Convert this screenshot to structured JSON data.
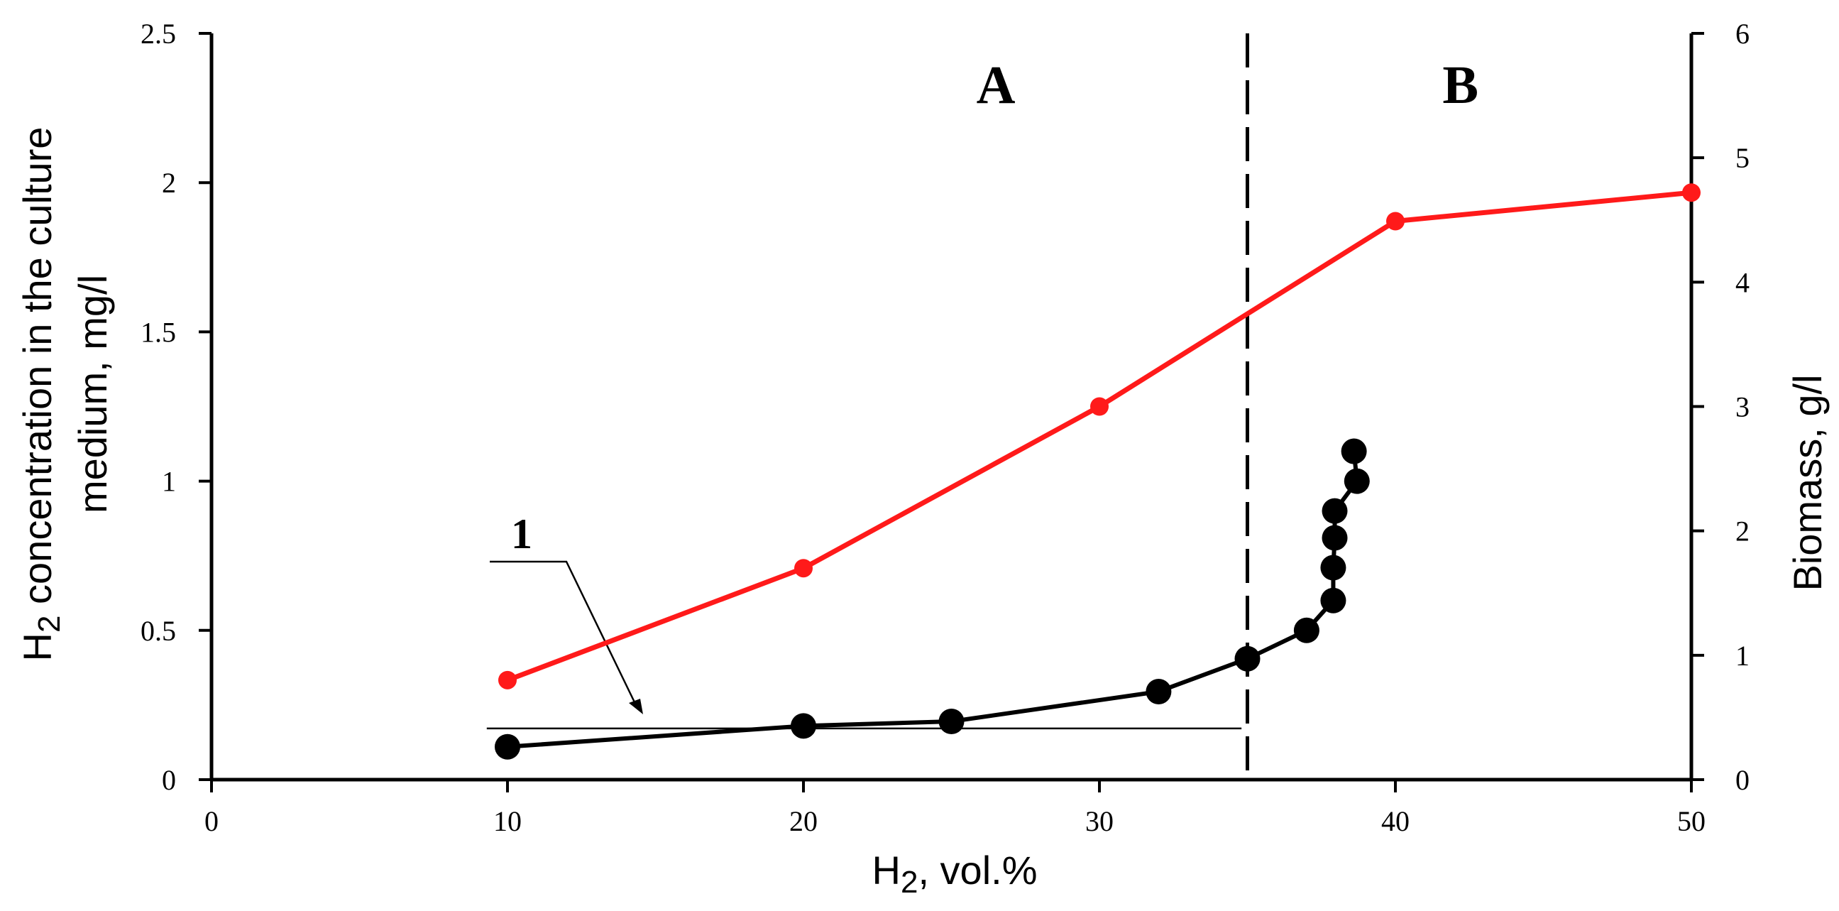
{
  "chart_data": {
    "type": "line",
    "x_label": {
      "base": "H",
      "sub": "2",
      "rest": ", vol.%"
    },
    "y_label_left": {
      "line1_base": "H",
      "line1_sub": "2",
      "line1_rest": " concentration in the culture",
      "line2": "medium, mg/l"
    },
    "y_label_right": "Biomass, g/l",
    "x_range": [
      0,
      50
    ],
    "x_ticks": [
      "0",
      "10",
      "20",
      "30",
      "40",
      "50"
    ],
    "y_left_range": [
      0,
      2.5
    ],
    "y_left_ticks": [
      "0",
      "0.5",
      "1",
      "1.5",
      "2",
      "2.5"
    ],
    "y_right_range": [
      0,
      6
    ],
    "y_right_ticks": [
      "0",
      "1",
      "2",
      "3",
      "4",
      "5",
      "6"
    ],
    "regions": [
      {
        "label": "A",
        "x_center": 26.5
      },
      {
        "label": "B",
        "x_center": 42.2
      }
    ],
    "divider_x": 35,
    "callout": {
      "label": "1",
      "line_from_x": 9.3,
      "line_to_x": 34.8,
      "line_y": 0.2
    },
    "series": [
      {
        "axis": "right",
        "color": "#ff1a1a",
        "points": [
          {
            "x": 10,
            "y": 0.8
          },
          {
            "x": 20,
            "y": 1.7
          },
          {
            "x": 30,
            "y": 3.0
          },
          {
            "x": 40,
            "y": 4.49
          },
          {
            "x": 50,
            "y": 4.72
          }
        ]
      },
      {
        "axis": "left",
        "color": "#000000",
        "points": [
          {
            "x": 10,
            "y": 0.11
          },
          {
            "x": 20,
            "y": 0.18
          },
          {
            "x": 25,
            "y": 0.195
          },
          {
            "x": 32,
            "y": 0.295
          },
          {
            "x": 35,
            "y": 0.405
          },
          {
            "x": 37,
            "y": 0.5
          },
          {
            "x": 37.9,
            "y": 0.6
          },
          {
            "x": 37.9,
            "y": 0.71
          },
          {
            "x": 37.95,
            "y": 0.81
          },
          {
            "x": 37.95,
            "y": 0.9
          },
          {
            "x": 38.7,
            "y": 1.0
          },
          {
            "x": 38.6,
            "y": 1.1
          }
        ]
      }
    ]
  }
}
